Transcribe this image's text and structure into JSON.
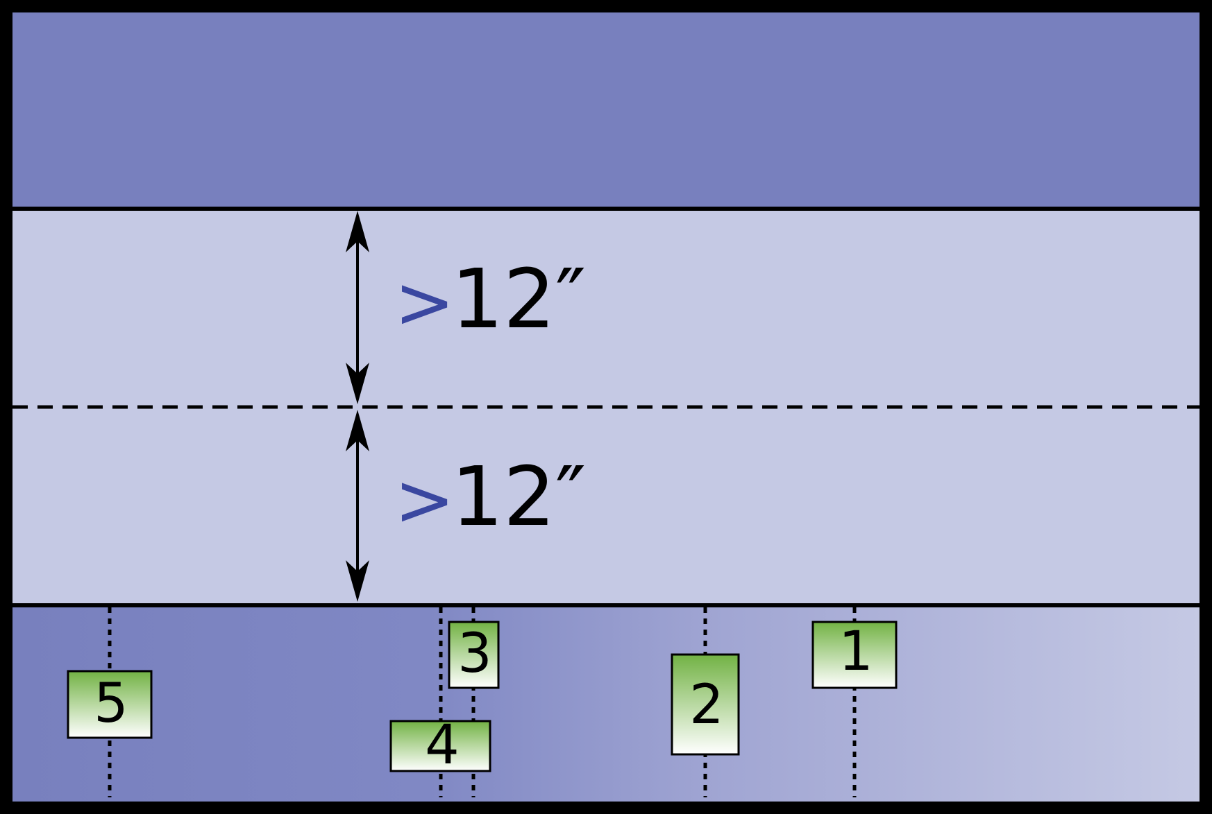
{
  "colors": {
    "frame": "#000000",
    "top_band": "#7880be",
    "middle_band": "#c5c9e4",
    "bottom_band_left": "#7880be",
    "bottom_band_right": "#c5c9e4",
    "gt_symbol": "#3a47a0",
    "text": "#000000",
    "box_top": "#72b244",
    "box_bottom": "#ffffff"
  },
  "measurements": [
    {
      "symbol": ">",
      "value": "12″"
    },
    {
      "symbol": ">",
      "value": "12″"
    }
  ],
  "markers": [
    {
      "label": "1"
    },
    {
      "label": "2"
    },
    {
      "label": "3"
    },
    {
      "label": "4"
    },
    {
      "label": "5"
    }
  ]
}
